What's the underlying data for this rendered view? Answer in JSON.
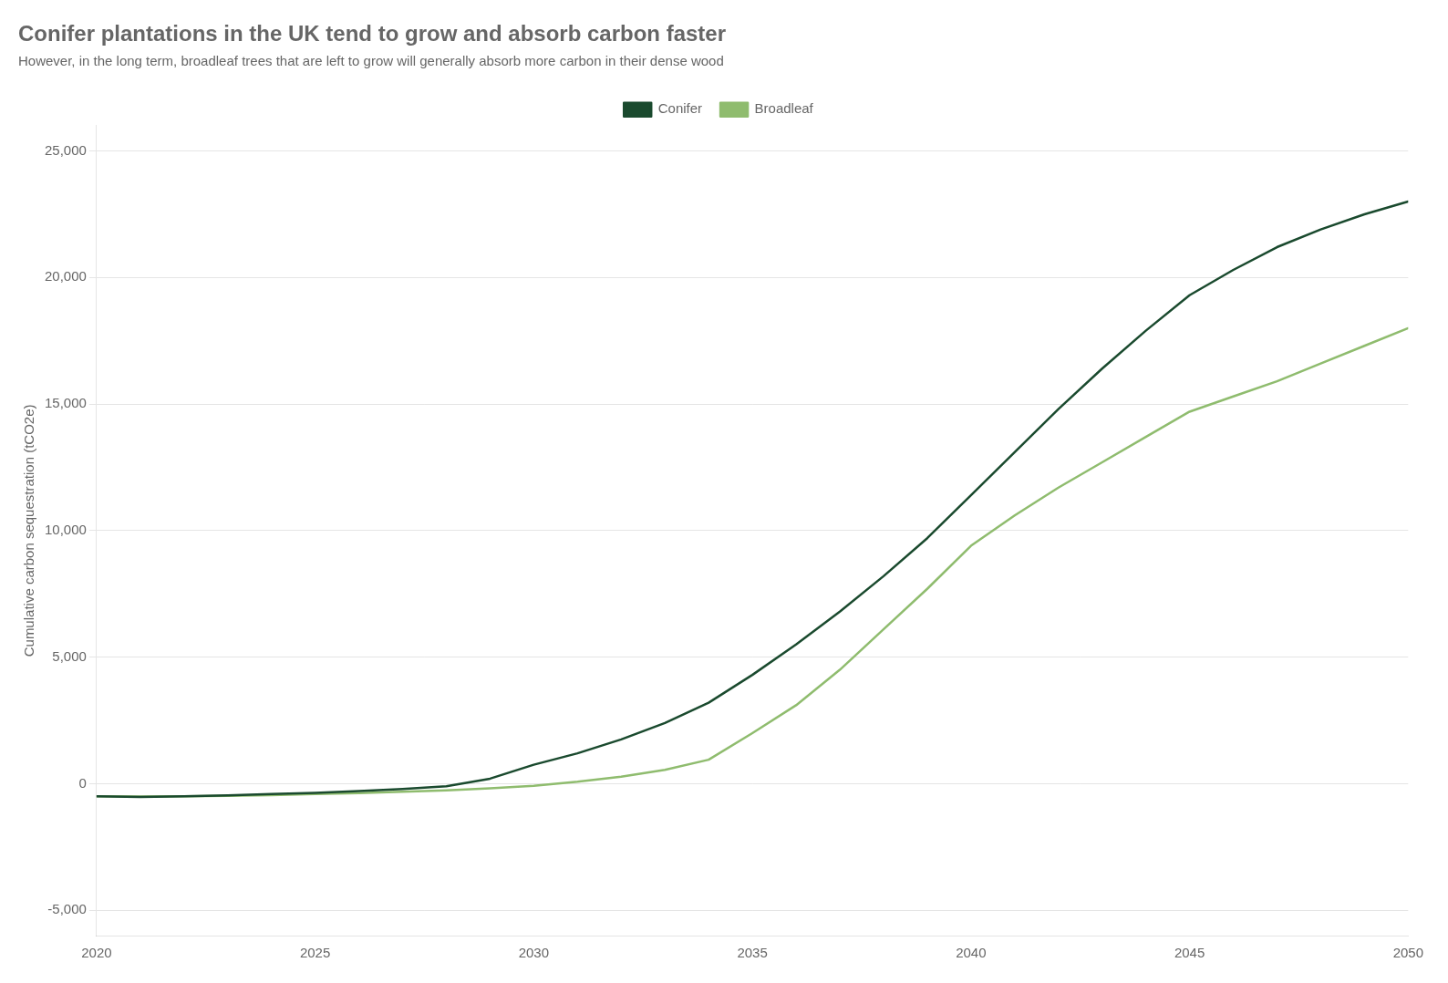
{
  "chart_data": {
    "type": "line",
    "title": "Conifer plantations in the UK tend to grow and absorb carbon faster",
    "subtitle": "However, in the long term, broadleaf trees that are left to grow will generally absorb more carbon in their dense wood",
    "ylabel": "Cumulative carbon sequestration (tCO2e)",
    "x": [
      2020,
      2021,
      2022,
      2023,
      2024,
      2025,
      2026,
      2027,
      2028,
      2029,
      2030,
      2031,
      2032,
      2033,
      2034,
      2035,
      2036,
      2037,
      2038,
      2039,
      2040,
      2041,
      2042,
      2043,
      2044,
      2045,
      2046,
      2047,
      2048,
      2049,
      2050
    ],
    "series": [
      {
        "name": "Conifer",
        "color": "#1a4a2e",
        "values": [
          -500,
          -520,
          -500,
          -460,
          -410,
          -360,
          -290,
          -210,
          -100,
          200,
          750,
          1200,
          1750,
          2400,
          3200,
          4300,
          5500,
          6800,
          8200,
          9700,
          11400,
          13100,
          14800,
          16400,
          17900,
          19300,
          20300,
          21200,
          21900,
          22500,
          23000
        ]
      },
      {
        "name": "Broadleaf",
        "color": "#8fbc6e",
        "values": [
          -500,
          -510,
          -500,
          -480,
          -450,
          -410,
          -370,
          -320,
          -260,
          -180,
          -80,
          80,
          280,
          550,
          950,
          2000,
          3100,
          4500,
          6100,
          7700,
          9400,
          10600,
          11700,
          12700,
          13700,
          14700,
          15300,
          15900,
          16600,
          17300,
          18000
        ]
      }
    ],
    "xlim": [
      2020,
      2050
    ],
    "xticks": [
      2020,
      2025,
      2030,
      2035,
      2040,
      2045,
      2050
    ],
    "ylim": [
      -6000,
      26000
    ],
    "yticks": [
      {
        "value": -5000,
        "label": "-5,000"
      },
      0,
      {
        "value": 5000,
        "label": "5,000"
      },
      {
        "value": 10000,
        "label": "10,000"
      },
      {
        "value": 15000,
        "label": "15,000"
      },
      {
        "value": 20000,
        "label": "20,000"
      },
      {
        "value": 25000,
        "label": "25,000"
      }
    ],
    "grid": "y",
    "legend": "upper center"
  }
}
